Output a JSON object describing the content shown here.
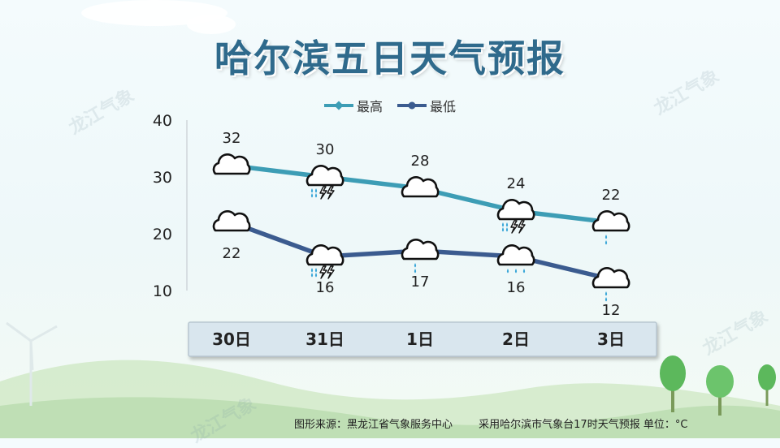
{
  "title": "哈尔滨五日天气预报",
  "watermark": "龙江气象",
  "footer": {
    "source": "图形来源：黑龙江省气象服务中心",
    "note": "采用哈尔滨市气象台17时天气预报 单位：°C"
  },
  "colors": {
    "high": "#3d9db5",
    "low": "#3b5b8f",
    "title": "#2f6a8c",
    "date_bar": "#d9e6ee"
  },
  "chart_data": {
    "type": "line",
    "categories": [
      "30日",
      "31日",
      "1日",
      "2日",
      "3日"
    ],
    "ylim": [
      10,
      40
    ],
    "yticks": [
      10,
      20,
      30,
      40
    ],
    "legend_position": "top-center",
    "series": [
      {
        "name": "最高",
        "values": [
          32,
          30,
          28,
          24,
          22
        ],
        "icons": [
          "cloud-icon",
          "thunderstorm-icon",
          "cloud-icon",
          "thunderstorm-icon",
          "light-rain-icon"
        ]
      },
      {
        "name": "最低",
        "values": [
          22,
          16,
          17,
          16,
          12
        ],
        "icons": [
          "cloud-icon",
          "thunderstorm-icon",
          "light-rain-icon",
          "rain-icon",
          "light-rain-icon"
        ]
      }
    ]
  }
}
